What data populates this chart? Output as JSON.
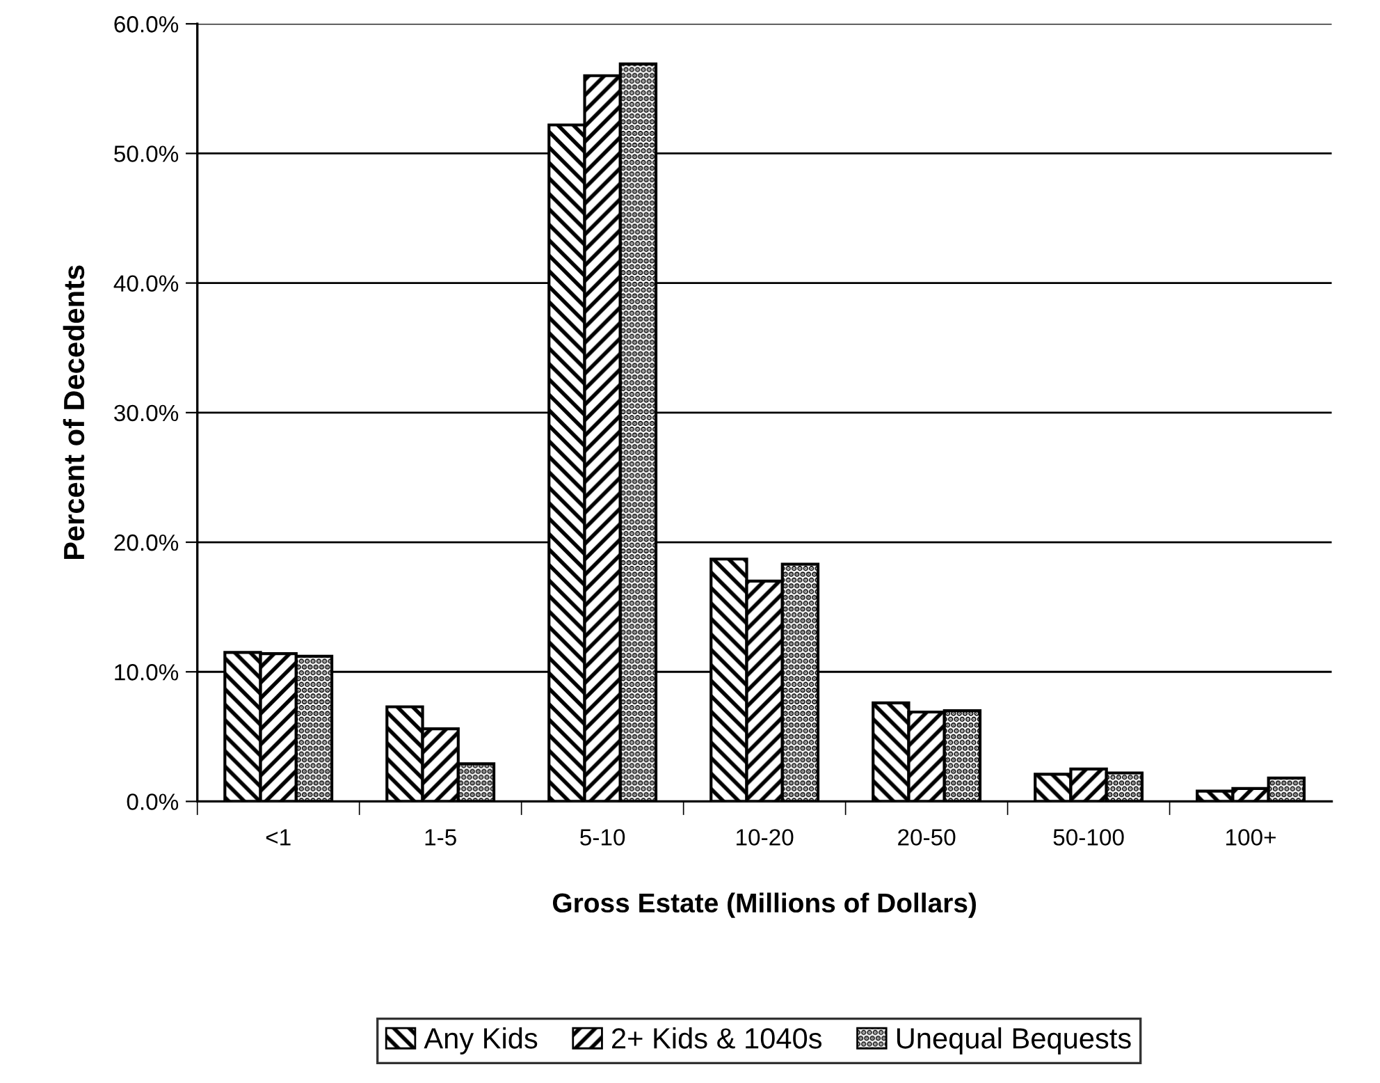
{
  "chart_data": {
    "type": "bar",
    "xlabel": "Gross Estate (Millions of Dollars)",
    "ylabel": "Percent of Decedents",
    "categories": [
      "<1",
      "1-5",
      "5-10",
      "10-20",
      "20-50",
      "50-100",
      "100+"
    ],
    "series": [
      {
        "name": "Any Kids",
        "color": "#000000",
        "values": [
          11.5,
          7.3,
          52.2,
          18.7,
          7.6,
          2.1,
          0.8
        ]
      },
      {
        "name": "2+ Kids & 1040s",
        "color": "#000000",
        "values": [
          11.4,
          5.6,
          56.0,
          17.0,
          6.9,
          2.5,
          1.0
        ]
      },
      {
        "name": "Unequal Bequests",
        "color": "#000000",
        "values": [
          11.2,
          2.9,
          56.9,
          18.3,
          7.0,
          2.2,
          1.8
        ]
      }
    ],
    "ylim": [
      0,
      60
    ],
    "yticks": [
      {
        "value": 0,
        "label": "0.0%"
      },
      {
        "value": 10,
        "label": "10.0%"
      },
      {
        "value": 20,
        "label": "20.0%"
      },
      {
        "value": 30,
        "label": "30.0%"
      },
      {
        "value": 40,
        "label": "40.0%"
      },
      {
        "value": 50,
        "label": "50.0%"
      },
      {
        "value": 60,
        "label": "60.0%"
      }
    ],
    "grid": "y",
    "legend": "bottom"
  }
}
